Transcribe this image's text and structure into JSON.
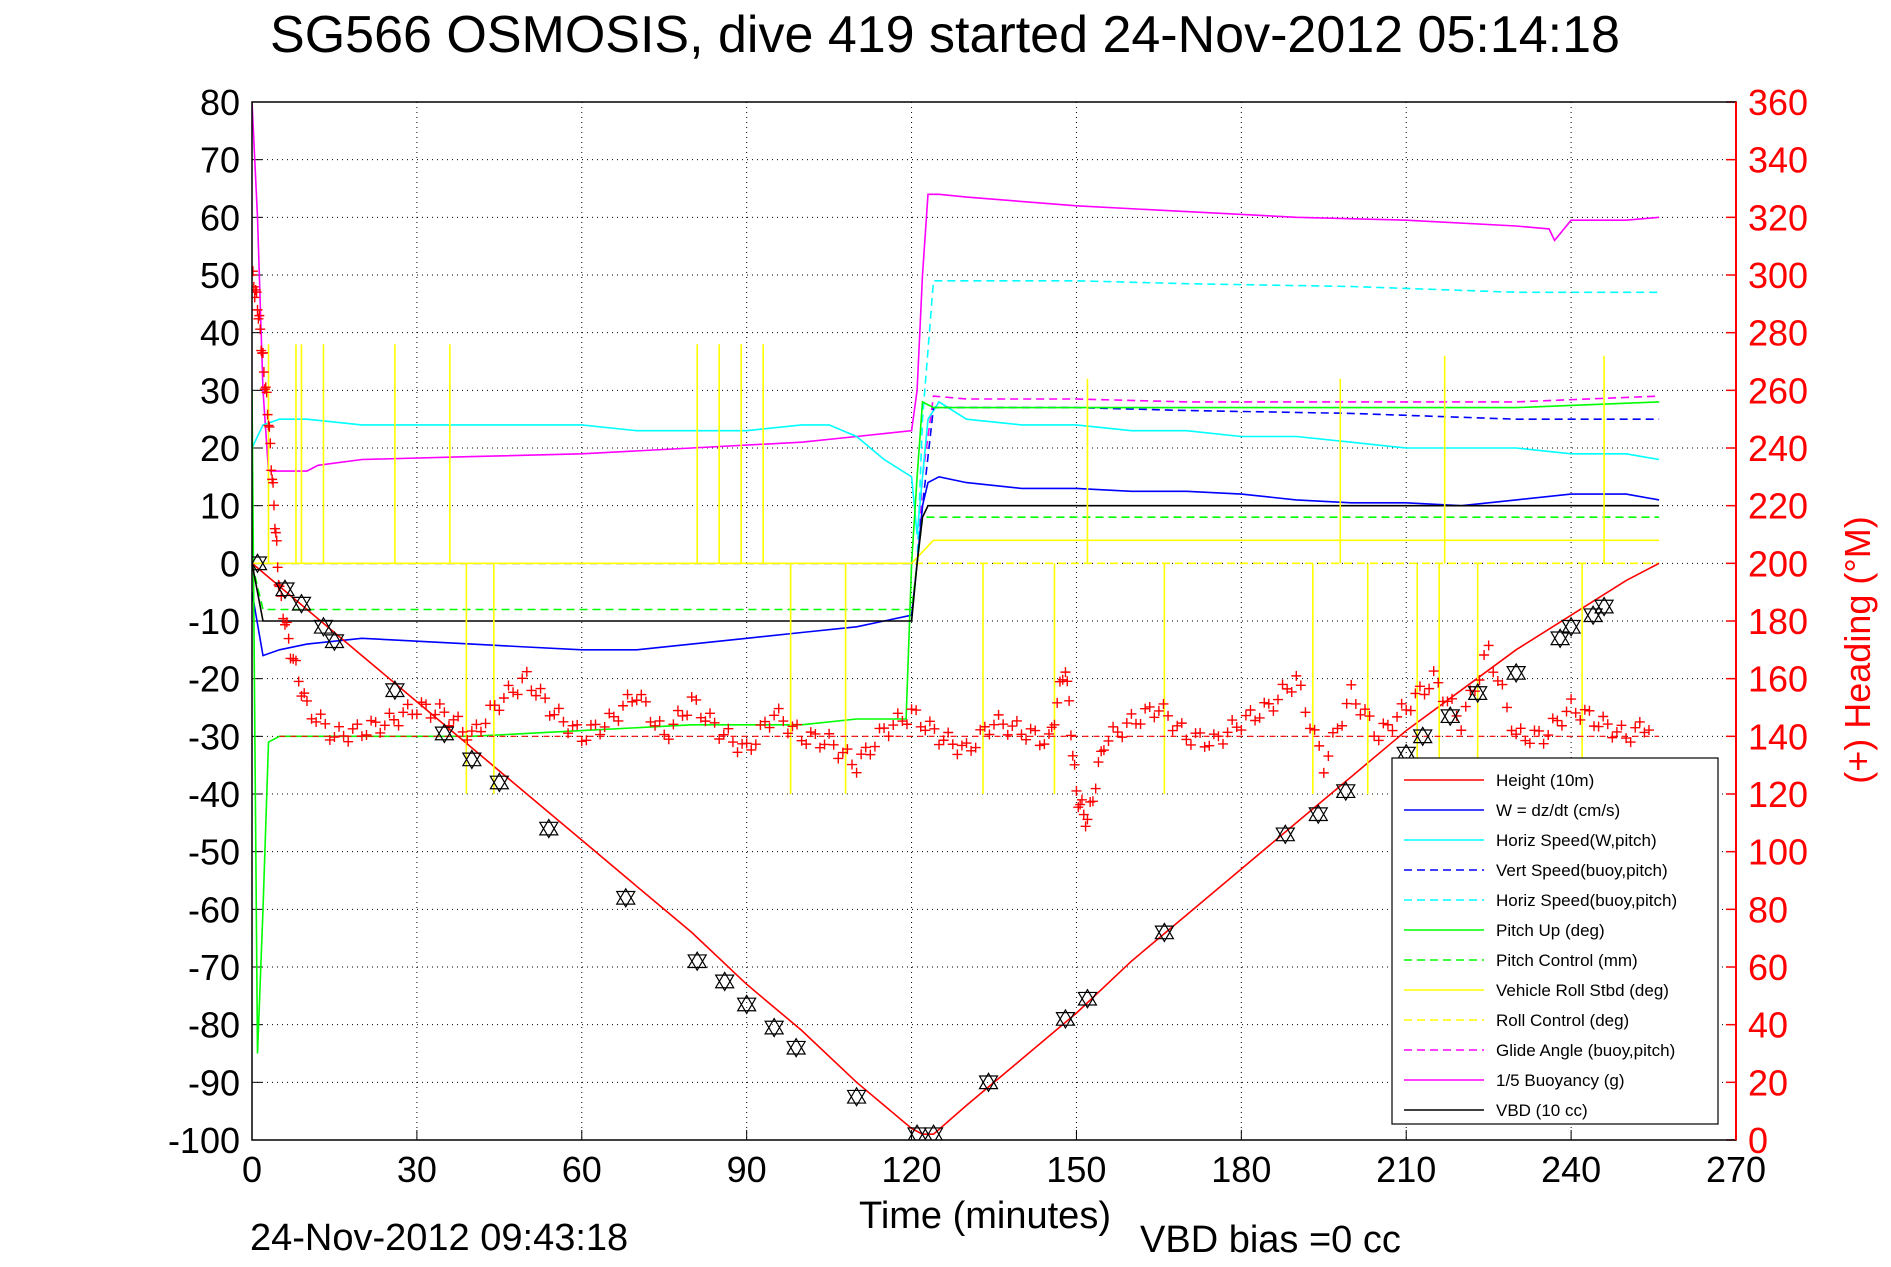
{
  "chart_data": {
    "type": "line",
    "title": "SG566 OSMOSIS, dive 419 started 24-Nov-2012 05:14:18",
    "xlabel": "Time (minutes)",
    "ylabel": "",
    "y2label": "(+) Heading (°M)",
    "footer_left": "24-Nov-2012 09:43:18",
    "footer_right": "VBD bias =0 cc",
    "xlim": [
      0,
      270
    ],
    "ylim": [
      -100,
      80
    ],
    "y2lim": [
      0,
      360
    ],
    "xticks": [
      0,
      30,
      60,
      90,
      120,
      150,
      180,
      210,
      240,
      270
    ],
    "yticks": [
      -100,
      -90,
      -80,
      -70,
      -60,
      -50,
      -40,
      -30,
      -20,
      -10,
      0,
      10,
      20,
      30,
      40,
      50,
      60,
      70,
      80
    ],
    "y2ticks": [
      0,
      20,
      40,
      60,
      80,
      100,
      120,
      140,
      160,
      180,
      200,
      220,
      240,
      260,
      280,
      300,
      320,
      340,
      360
    ],
    "grid": true,
    "legend_position": "bottom-right",
    "colors": {
      "height": "#ff0000",
      "w": "#0000ff",
      "horiz_w": "#00ffff",
      "vert_buoy": "#0000ff",
      "horiz_buoy": "#00ffff",
      "pitch": "#00ff00",
      "pitch_ctl": "#00ff00",
      "roll": "#ffff00",
      "roll_ctl": "#ffff00",
      "glide": "#ff00ff",
      "buoyancy": "#ff00ff",
      "vbd": "#000000",
      "heading": "#ff0000",
      "right_axis": "#ff0000"
    },
    "series": [
      {
        "name": "Height (10m)",
        "key": "height",
        "style": "solid",
        "x": [
          0,
          10,
          20,
          30,
          40,
          50,
          60,
          70,
          80,
          90,
          100,
          110,
          120,
          122,
          124,
          130,
          140,
          150,
          160,
          170,
          180,
          190,
          200,
          210,
          220,
          230,
          240,
          250,
          256
        ],
        "y": [
          0,
          -8,
          -16,
          -24,
          -32,
          -40,
          -48,
          -56,
          -64,
          -73,
          -81,
          -90,
          -98,
          -99,
          -99,
          -94,
          -86,
          -78,
          -69,
          -61,
          -53,
          -45,
          -37,
          -29,
          -22,
          -15,
          -9,
          -3,
          0
        ]
      },
      {
        "name": "W = dz/dt (cm/s)",
        "key": "w",
        "style": "solid",
        "x": [
          0,
          2,
          5,
          10,
          20,
          30,
          40,
          50,
          60,
          70,
          80,
          90,
          100,
          110,
          115,
          120,
          121,
          122,
          123,
          125,
          130,
          140,
          150,
          160,
          170,
          180,
          190,
          200,
          210,
          220,
          230,
          240,
          250,
          256
        ],
        "y": [
          -5,
          -16,
          -15,
          -14,
          -13,
          -13.5,
          -14,
          -14.5,
          -15,
          -15,
          -14,
          -13,
          -12,
          -11,
          -10,
          -9,
          0,
          10,
          14,
          15,
          14,
          13,
          13,
          12.5,
          12.5,
          12,
          11,
          10.5,
          10.5,
          10,
          11,
          12,
          12,
          11
        ]
      },
      {
        "name": "Horiz Speed(W,pitch)",
        "key": "horiz_w",
        "style": "solid",
        "x": [
          0,
          2,
          5,
          10,
          20,
          30,
          40,
          50,
          60,
          70,
          80,
          90,
          100,
          105,
          110,
          115,
          120,
          121,
          122,
          123,
          125,
          130,
          140,
          150,
          160,
          170,
          180,
          190,
          200,
          210,
          220,
          230,
          240,
          250,
          256
        ],
        "y": [
          20,
          24,
          25,
          25,
          24,
          24,
          24,
          24,
          24,
          23,
          23,
          23,
          24,
          24,
          22,
          18,
          15,
          5,
          15,
          25,
          28,
          25,
          24,
          24,
          23,
          23,
          22,
          22,
          21,
          20,
          20,
          20,
          19,
          19,
          18
        ]
      },
      {
        "name": "Vert Speed(buoy,pitch)",
        "key": "vert_buoy",
        "style": "dashed",
        "x": [
          0,
          120,
          121,
          122,
          124,
          130,
          150,
          170,
          200,
          230,
          256
        ],
        "y": [
          0,
          0,
          0,
          10,
          27,
          27,
          27,
          26.5,
          26,
          25,
          25
        ]
      },
      {
        "name": "Horiz Speed(buoy,pitch)",
        "key": "horiz_buoy",
        "style": "dashed",
        "x": [
          0,
          120,
          121,
          122,
          124,
          130,
          150,
          170,
          200,
          230,
          250,
          256
        ],
        "y": [
          0,
          0,
          0,
          25,
          49,
          49,
          49,
          48.5,
          48,
          47,
          47,
          47
        ]
      },
      {
        "name": "Pitch Up (deg)",
        "key": "pitch",
        "style": "solid",
        "x": [
          0,
          1,
          2,
          3,
          5,
          10,
          20,
          40,
          60,
          80,
          100,
          110,
          119,
          120,
          121,
          122,
          124,
          130,
          150,
          170,
          200,
          230,
          256
        ],
        "y": [
          30,
          -85,
          -60,
          -31,
          -30,
          -30,
          -30,
          -30,
          -29,
          -28,
          -28,
          -27,
          -27,
          0,
          15,
          28,
          27,
          27,
          27,
          27,
          27,
          27,
          28
        ]
      },
      {
        "name": "Pitch Control (mm)",
        "key": "pitch_ctl",
        "style": "dashed",
        "x": [
          0,
          2,
          3,
          120,
          121,
          122,
          124,
          256
        ],
        "y": [
          0,
          -8,
          -8,
          -8,
          0,
          8,
          8,
          8
        ]
      },
      {
        "name": "Vehicle Roll Stbd (deg)",
        "key": "roll",
        "style": "solid",
        "x": [
          0,
          5,
          10,
          30,
          60,
          90,
          120,
          121,
          122,
          124,
          150,
          180,
          210,
          240,
          256
        ],
        "y": [
          0,
          0,
          0,
          0,
          0,
          0,
          0,
          1,
          2,
          4,
          4,
          4,
          4,
          4,
          4
        ]
      },
      {
        "name": "Roll Control (deg)",
        "key": "roll_ctl",
        "style": "dashed",
        "x": [
          0,
          120,
          121,
          124,
          256
        ],
        "y": [
          0,
          0,
          0,
          0,
          0
        ]
      },
      {
        "name": "Glide Angle (buoy,pitch)",
        "key": "glide",
        "style": "dashed",
        "x": [
          0,
          120,
          121,
          122,
          124,
          130,
          150,
          170,
          200,
          230,
          256
        ],
        "y": [
          0,
          0,
          0,
          15,
          29,
          28.5,
          28.5,
          28,
          28,
          28,
          29
        ]
      },
      {
        "name": "1/5 Buoyancy (g)",
        "key": "buoyancy",
        "style": "solid",
        "x": [
          0,
          1,
          2,
          3,
          5,
          10,
          12,
          20,
          40,
          60,
          80,
          100,
          110,
          120,
          121,
          122,
          123,
          125,
          130,
          150,
          170,
          190,
          210,
          230,
          236,
          237,
          240,
          250,
          256
        ],
        "y": [
          80,
          60,
          30,
          16,
          16,
          16,
          17,
          18,
          18.5,
          19,
          20,
          21,
          22,
          23,
          30,
          50,
          64,
          64,
          63.5,
          62,
          61,
          60,
          59.5,
          58.5,
          58,
          56,
          59.5,
          59.5,
          60
        ]
      },
      {
        "name": "VBD (10 cc)",
        "key": "vbd",
        "style": "solid",
        "x": [
          0,
          2,
          3,
          120,
          121,
          122,
          123,
          125,
          256
        ],
        "y": [
          0,
          -10,
          -10,
          -10,
          0,
          8,
          10,
          10,
          10
        ]
      }
    ],
    "roll_spikes": [
      {
        "x": 3,
        "y": 38
      },
      {
        "x": 8,
        "y": 38
      },
      {
        "x": 9,
        "y": 38
      },
      {
        "x": 13,
        "y": 38
      },
      {
        "x": 26,
        "y": 38
      },
      {
        "x": 36,
        "y": 38
      },
      {
        "x": 81,
        "y": 38
      },
      {
        "x": 85,
        "y": 38
      },
      {
        "x": 89,
        "y": 38
      },
      {
        "x": 93,
        "y": 38
      },
      {
        "x": 39,
        "y": -40
      },
      {
        "x": 44,
        "y": -40
      },
      {
        "x": 98,
        "y": -40
      },
      {
        "x": 108,
        "y": -40
      },
      {
        "x": 133,
        "y": -40
      },
      {
        "x": 146,
        "y": -40
      },
      {
        "x": 152,
        "y": 32
      },
      {
        "x": 166,
        "y": -40
      },
      {
        "x": 193,
        "y": -40
      },
      {
        "x": 198,
        "y": 32
      },
      {
        "x": 203,
        "y": -40
      },
      {
        "x": 212,
        "y": -40
      },
      {
        "x": 216,
        "y": -40
      },
      {
        "x": 217,
        "y": 36
      },
      {
        "x": 223,
        "y": -40
      },
      {
        "x": 242,
        "y": -40
      },
      {
        "x": 246,
        "y": 36
      }
    ],
    "heading": {
      "name": "Heading",
      "axis": "right",
      "target": 140,
      "x": [
        0,
        1,
        2,
        3,
        4,
        5,
        7,
        10,
        15,
        20,
        25,
        30,
        35,
        40,
        45,
        50,
        55,
        60,
        65,
        70,
        75,
        80,
        85,
        90,
        95,
        100,
        105,
        110,
        115,
        120,
        125,
        130,
        135,
        140,
        145,
        148,
        150,
        152,
        155,
        160,
        165,
        170,
        175,
        180,
        185,
        190,
        195,
        200,
        205,
        210,
        215,
        220,
        225,
        230,
        235,
        240,
        245,
        250,
        255
      ],
      "y": [
        300,
        290,
        270,
        250,
        220,
        190,
        170,
        150,
        140,
        142,
        145,
        150,
        148,
        140,
        152,
        160,
        148,
        140,
        145,
        155,
        140,
        152,
        142,
        135,
        148,
        140,
        138,
        130,
        142,
        148,
        140,
        135,
        145,
        142,
        138,
        165,
        120,
        110,
        138,
        145,
        150,
        140,
        138,
        145,
        150,
        160,
        130,
        155,
        140,
        150,
        160,
        145,
        170,
        140,
        140,
        150,
        145,
        140,
        145
      ]
    },
    "markers": [
      {
        "x": 1,
        "y": 0
      },
      {
        "x": 6,
        "y": -4.5
      },
      {
        "x": 9,
        "y": -7
      },
      {
        "x": 13,
        "y": -11
      },
      {
        "x": 15,
        "y": -13.5
      },
      {
        "x": 26,
        "y": -22
      },
      {
        "x": 35,
        "y": -29.5
      },
      {
        "x": 40,
        "y": -34
      },
      {
        "x": 45,
        "y": -38
      },
      {
        "x": 54,
        "y": -46
      },
      {
        "x": 68,
        "y": -58
      },
      {
        "x": 81,
        "y": -69
      },
      {
        "x": 86,
        "y": -72.5
      },
      {
        "x": 90,
        "y": -76.5
      },
      {
        "x": 95,
        "y": -80.5
      },
      {
        "x": 99,
        "y": -84
      },
      {
        "x": 110,
        "y": -92.5
      },
      {
        "x": 121,
        "y": -99
      },
      {
        "x": 124,
        "y": -99
      },
      {
        "x": 134,
        "y": -90
      },
      {
        "x": 148,
        "y": -79
      },
      {
        "x": 152,
        "y": -75.5
      },
      {
        "x": 166,
        "y": -64
      },
      {
        "x": 188,
        "y": -47
      },
      {
        "x": 194,
        "y": -43.5
      },
      {
        "x": 199,
        "y": -39.5
      },
      {
        "x": 210,
        "y": -33
      },
      {
        "x": 213,
        "y": -30
      },
      {
        "x": 218,
        "y": -26.5
      },
      {
        "x": 223,
        "y": -22.5
      },
      {
        "x": 230,
        "y": -19
      },
      {
        "x": 238,
        "y": -13
      },
      {
        "x": 240,
        "y": -11
      },
      {
        "x": 244,
        "y": -9
      },
      {
        "x": 246,
        "y": -7.5
      }
    ]
  }
}
